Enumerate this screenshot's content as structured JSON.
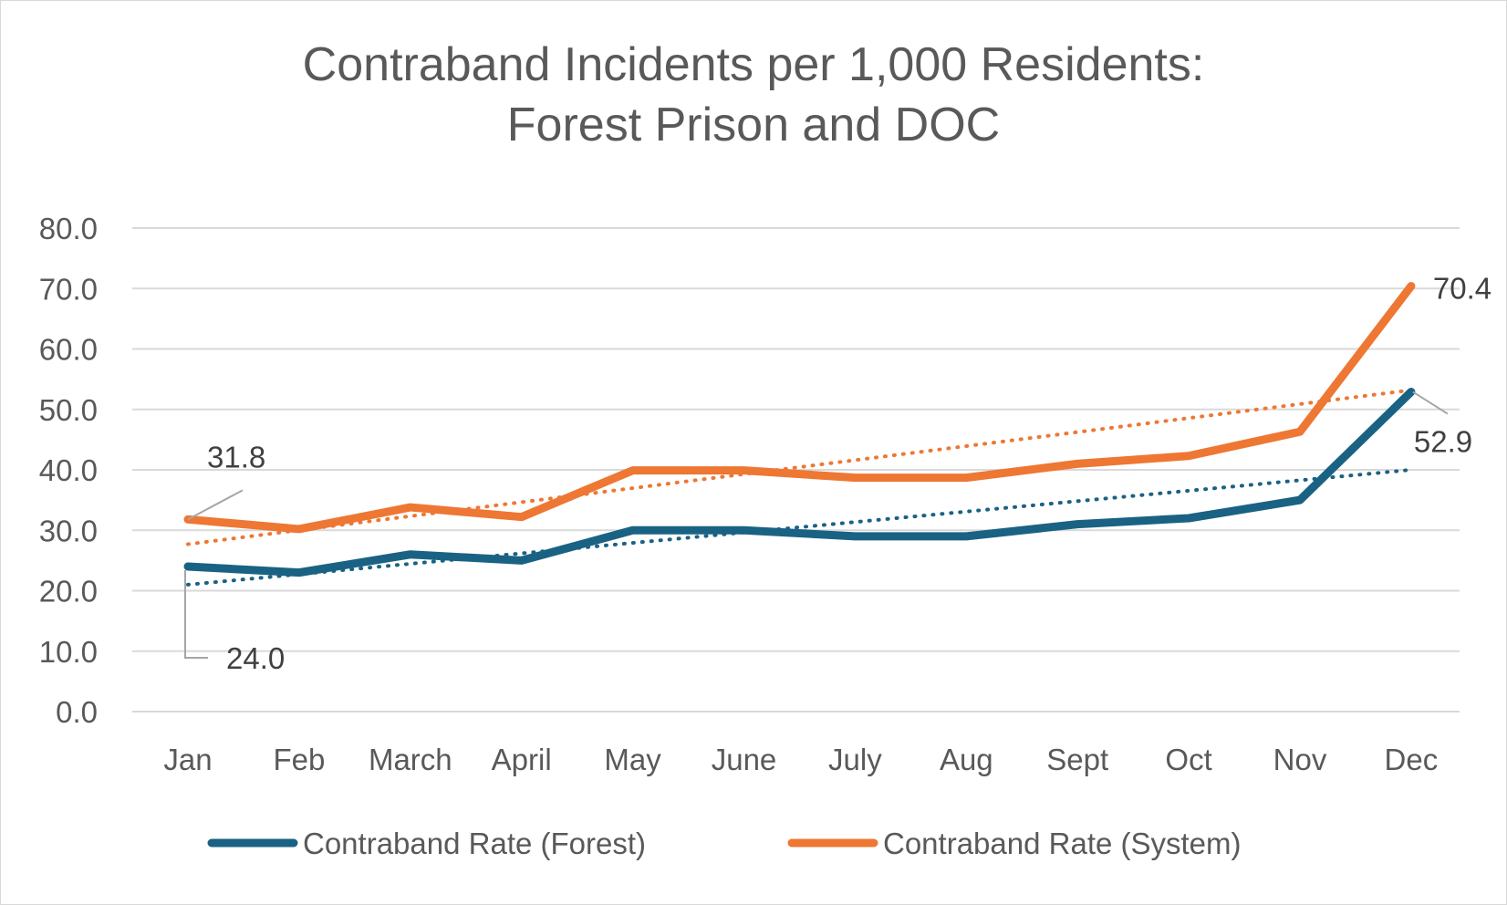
{
  "chart_data": {
    "type": "line",
    "title_lines": [
      "Contraband Incidents per 1,000 Residents:",
      "Forest Prison and DOC"
    ],
    "categories": [
      "Jan",
      "Feb",
      "March",
      "April",
      "May",
      "June",
      "July",
      "Aug",
      "Sept",
      "Oct",
      "Nov",
      "Dec"
    ],
    "ylim": [
      0,
      80
    ],
    "yticks": [
      "0.0",
      "10.0",
      "20.0",
      "30.0",
      "40.0",
      "50.0",
      "60.0",
      "70.0",
      "80.0"
    ],
    "grid": true,
    "legend_position": "bottom",
    "series": [
      {
        "name": "Contraband Rate (Forest)",
        "color": "#1a6283",
        "values": [
          24.0,
          23.0,
          26.0,
          25.0,
          30.0,
          30.0,
          29.0,
          29.0,
          31.0,
          32.0,
          35.0,
          52.9
        ],
        "trendline": {
          "style": "dotted",
          "start": 21.0,
          "end": 40.0
        }
      },
      {
        "name": "Contraband Rate (System)",
        "color": "#ee7733",
        "values": [
          31.8,
          30.2,
          33.8,
          32.2,
          39.9,
          39.9,
          38.7,
          38.7,
          41.0,
          42.3,
          46.3,
          70.4
        ],
        "trendline": {
          "style": "dotted",
          "start": 27.7,
          "end": 53.2
        }
      }
    ],
    "data_labels": [
      {
        "series": 1,
        "index": 0,
        "text": "31.8"
      },
      {
        "series": 0,
        "index": 0,
        "text": "24.0"
      },
      {
        "series": 1,
        "index": 11,
        "text": "70.4"
      },
      {
        "series": 0,
        "index": 11,
        "text": "52.9"
      }
    ]
  }
}
